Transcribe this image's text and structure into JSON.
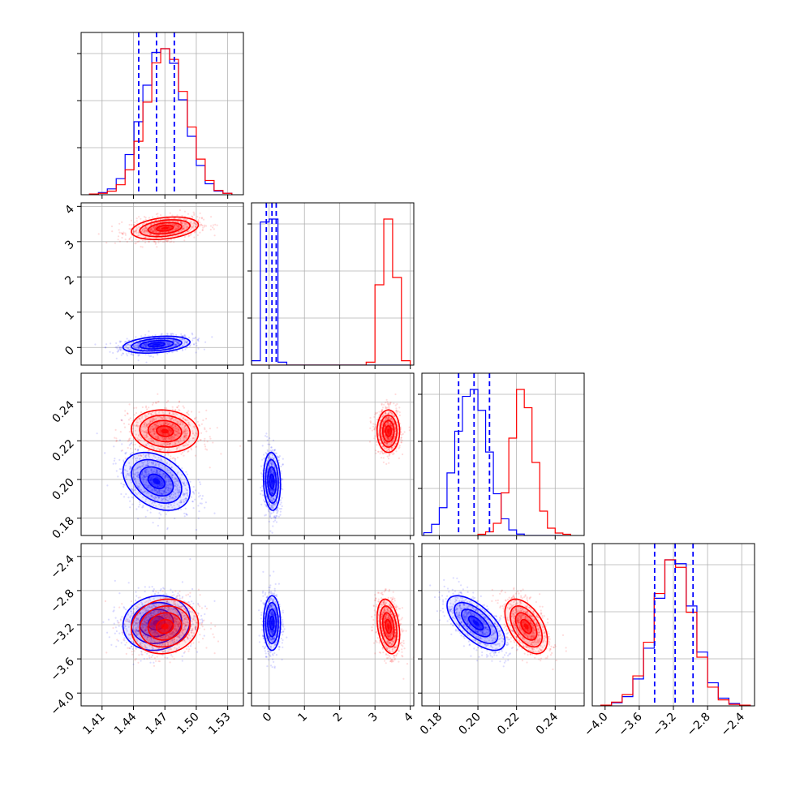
{
  "chart_data": {
    "type": "corner",
    "title": "",
    "parameters": [
      "",
      "",
      "",
      ""
    ],
    "ranges": [
      [
        1.39,
        1.545
      ],
      [
        -0.5,
        4.1
      ],
      [
        0.171,
        0.255
      ],
      [
        -4.15,
        -2.25
      ]
    ],
    "ticks": [
      [
        "1.41",
        "1.44",
        "1.47",
        "1.50",
        "1.53"
      ],
      [
        "0",
        "1",
        "2",
        "3",
        "4"
      ],
      [
        "0.18",
        "0.20",
        "0.22",
        "0.24"
      ],
      [
        "−4.0",
        "−3.6",
        "−3.2",
        "−2.8",
        "−2.4"
      ]
    ],
    "tick_values": [
      [
        1.41,
        1.44,
        1.47,
        1.5,
        1.53
      ],
      [
        0,
        1,
        2,
        3,
        4
      ],
      [
        0.18,
        0.2,
        0.22,
        0.24
      ],
      [
        -4.0,
        -3.6,
        -3.2,
        -2.8,
        -2.4
      ]
    ],
    "grid": true,
    "series": [
      {
        "color": "#0000ff",
        "mean": [
          1.462,
          0.08,
          0.199,
          -3.18
        ],
        "sd": [
          0.016,
          0.12,
          0.0075,
          0.16
        ],
        "corr": [
          [
            1,
            0.3,
            -0.35,
            0.1
          ],
          [
            0.3,
            1,
            -0.1,
            0.0
          ],
          [
            -0.35,
            -0.1,
            1,
            -0.65
          ],
          [
            0.1,
            0.0,
            -0.65,
            1
          ]
        ],
        "quantiles": [
          [
            1.445,
            1.462,
            1.479
          ],
          [
            -0.08,
            0.08,
            0.2
          ],
          [
            0.19,
            0.198,
            0.206
          ],
          [
            -3.42,
            -3.18,
            -2.97
          ]
        ],
        "hist": [
          {
            "edges": [
              1.398,
              1.4065,
              1.415,
              1.4235,
              1.432,
              1.4405,
              1.449,
              1.4575,
              1.466,
              1.4745,
              1.483,
              1.4915,
              1.5,
              1.5085,
              1.517,
              1.5255,
              1.534
            ],
            "counts": [
              1,
              3,
              8,
              22,
              55,
              100,
              150,
              195,
              200,
              180,
              130,
              80,
              40,
              15,
              5,
              2
            ]
          },
          {
            "edges": [
              -0.5,
              -0.25,
              0.0,
              0.25,
              0.5,
              0.75,
              1.0,
              1.25,
              1.5,
              1.75,
              2.0,
              2.25,
              2.5,
              2.75,
              3.0,
              3.25,
              3.5,
              3.75,
              4.0
            ],
            "counts": [
              3,
              98,
              100,
              2,
              0,
              0,
              0,
              0,
              0,
              0,
              0,
              0,
              0,
              0,
              0,
              0,
              0,
              0
            ]
          },
          {
            "edges": [
              0.172,
              0.176,
              0.18,
              0.184,
              0.188,
              0.192,
              0.196,
              0.2,
              0.204,
              0.208,
              0.212,
              0.216,
              0.22,
              0.224,
              0.228,
              0.232,
              0.236,
              0.24,
              0.244
            ],
            "counts": [
              2,
              8,
              20,
              45,
              75,
              100,
              105,
              90,
              60,
              30,
              12,
              4,
              1,
              0,
              0,
              0,
              0,
              0
            ]
          },
          {
            "edges": [
              -4.05,
              -3.925,
              -3.8,
              -3.675,
              -3.55,
              -3.425,
              -3.3,
              -3.175,
              -3.05,
              -2.925,
              -2.8,
              -2.675,
              -2.55,
              -2.425,
              -2.3
            ],
            "counts": [
              1,
              4,
              12,
              35,
              75,
              140,
              190,
              185,
              130,
              70,
              30,
              10,
              3,
              1
            ]
          }
        ]
      },
      {
        "color": "#ff0000",
        "mean": [
          1.47,
          3.38,
          0.225,
          -3.22
        ],
        "sd": [
          0.016,
          0.16,
          0.0055,
          0.16
        ],
        "corr": [
          [
            1,
            0.3,
            -0.1,
            0.1
          ],
          [
            0.3,
            1,
            0.0,
            -0.3
          ],
          [
            -0.1,
            0.0,
            1,
            -0.5
          ],
          [
            0.1,
            -0.3,
            -0.5,
            1
          ]
        ],
        "quantiles": [],
        "hist": [
          {
            "edges": [
              1.398,
              1.4065,
              1.415,
              1.4235,
              1.432,
              1.4405,
              1.449,
              1.4575,
              1.466,
              1.4745,
              1.483,
              1.4915,
              1.5,
              1.5085,
              1.517,
              1.5255,
              1.534
            ],
            "counts": [
              1,
              2,
              5,
              14,
              35,
              75,
              130,
              185,
              205,
              190,
              145,
              95,
              50,
              20,
              6,
              2
            ]
          },
          {
            "edges": [
              -0.5,
              -0.25,
              0.0,
              0.25,
              0.5,
              0.75,
              1.0,
              1.25,
              1.5,
              1.75,
              2.0,
              2.25,
              2.5,
              2.75,
              3.0,
              3.25,
              3.5,
              3.75,
              4.0
            ],
            "counts": [
              0,
              0,
              0,
              0,
              0,
              0,
              0,
              0,
              0,
              0,
              0,
              0,
              0,
              2,
              55,
              100,
              60,
              3
            ]
          },
          {
            "edges": [
              0.2,
              0.204,
              0.208,
              0.212,
              0.216,
              0.22,
              0.224,
              0.228,
              0.232,
              0.236,
              0.24,
              0.244,
              0.248
            ],
            "counts": [
              1,
              3,
              10,
              35,
              80,
              120,
              105,
              60,
              20,
              6,
              2,
              1
            ]
          },
          {
            "edges": [
              -4.05,
              -3.925,
              -3.8,
              -3.675,
              -3.55,
              -3.425,
              -3.3,
              -3.175,
              -3.05,
              -2.925,
              -2.8,
              -2.675,
              -2.55,
              -2.425,
              -2.3
            ],
            "counts": [
              1,
              5,
              15,
              40,
              85,
              150,
              195,
              185,
              125,
              65,
              25,
              8,
              2,
              1
            ]
          }
        ]
      }
    ]
  }
}
